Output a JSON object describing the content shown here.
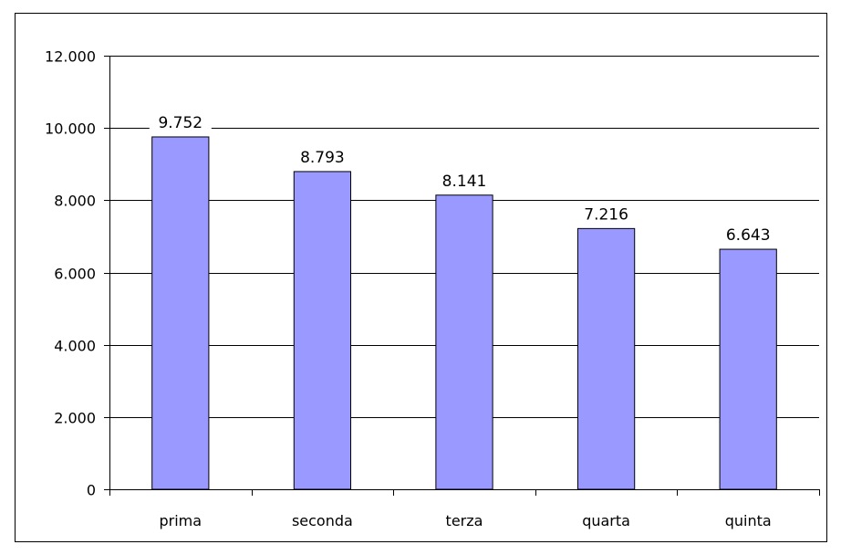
{
  "chart_data": {
    "type": "bar",
    "categories": [
      "prima",
      "seconda",
      "terza",
      "quarta",
      "quinta"
    ],
    "values": [
      9752,
      8793,
      8141,
      7216,
      6643
    ],
    "value_labels": [
      "9.752",
      "8.793",
      "8.141",
      "7.216",
      "6.643"
    ],
    "title": "",
    "xlabel": "",
    "ylabel": "",
    "ylim": [
      0,
      12000
    ],
    "yticks": [
      0,
      2000,
      4000,
      6000,
      8000,
      10000,
      12000
    ],
    "ytick_labels": [
      "0",
      "2.000",
      "4.000",
      "6.000",
      "8.000",
      "10.000",
      "12.000"
    ],
    "grid": true,
    "legend": "none",
    "colors": {
      "bar_fill": "#9999ff",
      "bar_stroke": "#000000",
      "grid": "#000000",
      "frame": "#000000",
      "background": "#ffffff"
    }
  }
}
